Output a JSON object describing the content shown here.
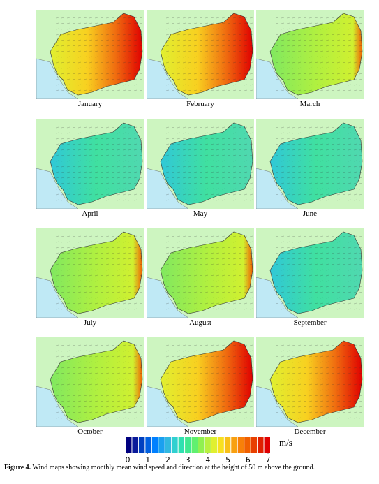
{
  "panels": [
    "January",
    "February",
    "March",
    "April",
    "May",
    "June",
    "July",
    "August",
    "September",
    "October",
    "November",
    "December"
  ],
  "colorbar": {
    "lim": [
      0,
      7
    ],
    "ticks": [
      0,
      1,
      2,
      3,
      4,
      5,
      6,
      7
    ],
    "unit": "m/s",
    "colors": [
      "#00007f",
      "#0a1a9a",
      "#0040c0",
      "#0060e0",
      "#0080ff",
      "#1aa0f0",
      "#30b8e0",
      "#30d0d0",
      "#30e0b0",
      "#40e890",
      "#60f070",
      "#90f050",
      "#b8f040",
      "#e0f030",
      "#f8e020",
      "#f8c018",
      "#f8a010",
      "#f88008",
      "#f06000",
      "#e84000",
      "#e02000",
      "#e00000"
    ]
  },
  "caption": {
    "label": "Figure 4.",
    "text": " Wind maps showing monthly mean wind speed and direction at the height of 50 m above the ground."
  }
}
